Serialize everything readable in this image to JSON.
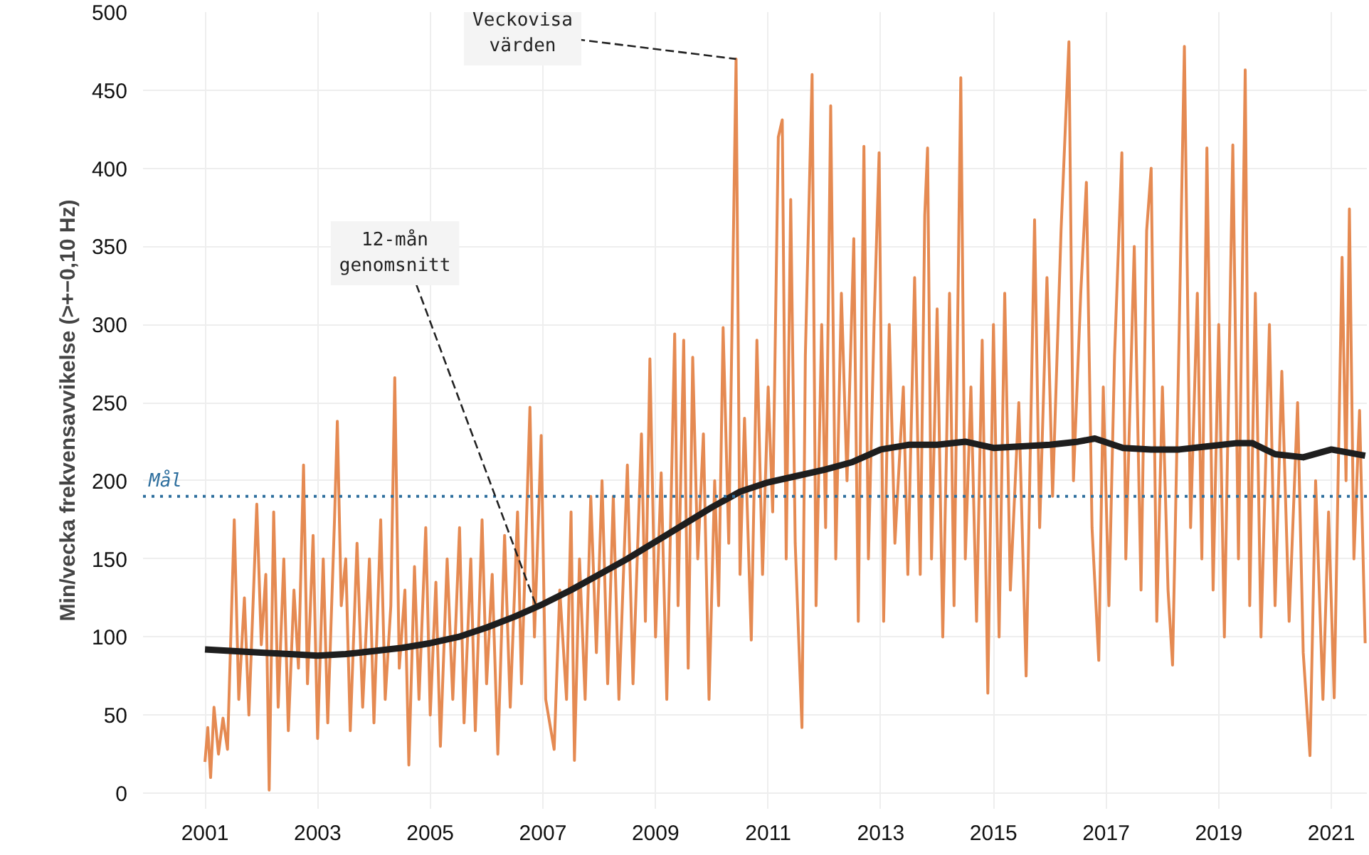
{
  "chart_data": {
    "type": "line",
    "ylabel": "Min/vecka frekvensavvikelse (>+−0,10 Hz)",
    "xlim": [
      1999.9,
      2021.63
    ],
    "ylim": [
      -10,
      500
    ],
    "xticks": [
      2001,
      2003,
      2005,
      2007,
      2009,
      2011,
      2013,
      2015,
      2017,
      2019,
      2021
    ],
    "yticks": [
      0,
      50,
      100,
      150,
      200,
      250,
      300,
      350,
      400,
      450,
      500
    ],
    "grid": true,
    "ref_lines": [
      {
        "axis": "y",
        "value": 190,
        "label": "Mål",
        "color": "#2e6f9e",
        "line_style": "dotted"
      }
    ],
    "annotations": [
      {
        "text": "Veckovisa\nvärden",
        "x": 2010.43,
        "y": 470
      },
      {
        "text": "12-mån\ngenomsnitt",
        "x": 2006.9,
        "y": 118
      }
    ],
    "series": [
      {
        "x": [
          2001.0,
          2001.05,
          2001.1,
          2001.16,
          2001.24,
          2001.32,
          2001.4,
          2001.52,
          2001.6,
          2001.7,
          2001.78,
          2001.92,
          2002.0,
          2002.08,
          2002.14,
          2002.22,
          2002.3,
          2002.4,
          2002.48,
          2002.58,
          2002.66,
          2002.75,
          2002.82,
          2002.92,
          2003.0,
          2003.1,
          2003.18,
          2003.3,
          2003.35,
          2003.42,
          2003.5,
          2003.58,
          2003.7,
          2003.8,
          2003.92,
          2004.0,
          2004.12,
          2004.2,
          2004.3,
          2004.37,
          2004.45,
          2004.55,
          2004.62,
          2004.72,
          2004.8,
          2004.92,
          2005.0,
          2005.1,
          2005.18,
          2005.3,
          2005.4,
          2005.52,
          2005.6,
          2005.72,
          2005.8,
          2005.92,
          2006.0,
          2006.1,
          2006.2,
          2006.32,
          2006.42,
          2006.55,
          2006.62,
          2006.77,
          2006.85,
          2006.97,
          2007.05,
          2007.2,
          2007.3,
          2007.42,
          2007.5,
          2007.56,
          2007.65,
          2007.75,
          2007.85,
          2007.95,
          2008.05,
          2008.15,
          2008.25,
          2008.35,
          2008.5,
          2008.6,
          2008.75,
          2008.82,
          2008.9,
          2009.0,
          2009.1,
          2009.2,
          2009.34,
          2009.4,
          2009.5,
          2009.58,
          2009.66,
          2009.75,
          2009.85,
          2009.95,
          2010.05,
          2010.12,
          2010.2,
          2010.3,
          2010.43,
          2010.5,
          2010.58,
          2010.7,
          2010.8,
          2010.9,
          2011.0,
          2011.08,
          2011.18,
          2011.25,
          2011.32,
          2011.4,
          2011.48,
          2011.6,
          2011.66,
          2011.78,
          2011.85,
          2011.95,
          2012.02,
          2012.11,
          2012.2,
          2012.3,
          2012.4,
          2012.52,
          2012.6,
          2012.7,
          2012.78,
          2012.88,
          2012.97,
          2013.05,
          2013.15,
          2013.25,
          2013.4,
          2013.48,
          2013.6,
          2013.7,
          2013.78,
          2013.83,
          2013.9,
          2014.0,
          2014.1,
          2014.22,
          2014.3,
          2014.42,
          2014.5,
          2014.6,
          2014.7,
          2014.8,
          2014.9,
          2015.0,
          2015.1,
          2015.2,
          2015.3,
          2015.45,
          2015.58,
          2015.73,
          2015.82,
          2015.95,
          2016.05,
          2016.2,
          2016.34,
          2016.42,
          2016.55,
          2016.65,
          2016.75,
          2016.87,
          2016.95,
          2017.05,
          2017.15,
          2017.28,
          2017.35,
          2017.5,
          2017.62,
          2017.72,
          2017.8,
          2017.9,
          2018.0,
          2018.1,
          2018.18,
          2018.3,
          2018.39,
          2018.5,
          2018.62,
          2018.7,
          2018.79,
          2018.9,
          2019.0,
          2019.1,
          2019.25,
          2019.35,
          2019.47,
          2019.55,
          2019.65,
          2019.75,
          2019.9,
          2020.0,
          2020.12,
          2020.25,
          2020.4,
          2020.5,
          2020.62,
          2020.72,
          2020.85,
          2020.95,
          2021.05,
          2021.19,
          2021.26,
          2021.32,
          2021.4,
          2021.5,
          2021.6
        ],
        "values": [
          20,
          42,
          10,
          55,
          25,
          48,
          28,
          175,
          60,
          125,
          50,
          185,
          95,
          140,
          2,
          180,
          55,
          150,
          40,
          130,
          80,
          210,
          70,
          165,
          35,
          150,
          45,
          175,
          238,
          120,
          150,
          40,
          160,
          55,
          150,
          45,
          175,
          60,
          120,
          266,
          80,
          130,
          18,
          145,
          60,
          170,
          50,
          135,
          30,
          150,
          60,
          170,
          45,
          150,
          40,
          175,
          70,
          140,
          25,
          165,
          55,
          180,
          70,
          247,
          100,
          229,
          60,
          28,
          130,
          60,
          180,
          21,
          150,
          60,
          190,
          90,
          200,
          70,
          190,
          60,
          210,
          70,
          230,
          110,
          278,
          100,
          205,
          60,
          294,
          120,
          290,
          80,
          279,
          150,
          230,
          60,
          200,
          120,
          298,
          160,
          470,
          140,
          240,
          98,
          290,
          140,
          260,
          180,
          420,
          431,
          150,
          380,
          160,
          42,
          280,
          460,
          120,
          300,
          170,
          440,
          150,
          320,
          200,
          355,
          110,
          414,
          150,
          300,
          410,
          110,
          300,
          160,
          260,
          140,
          330,
          140,
          370,
          413,
          150,
          310,
          100,
          320,
          120,
          458,
          150,
          260,
          110,
          290,
          64,
          300,
          100,
          320,
          130,
          250,
          75,
          367,
          170,
          330,
          190,
          360,
          481,
          200,
          320,
          391,
          170,
          85,
          260,
          120,
          280,
          410,
          150,
          350,
          130,
          360,
          400,
          110,
          260,
          130,
          82,
          300,
          478,
          170,
          320,
          150,
          413,
          130,
          300,
          100,
          415,
          150,
          463,
          120,
          320,
          100,
          300,
          120,
          270,
          110,
          250,
          90,
          24,
          200,
          60,
          180,
          61,
          343,
          200,
          374,
          150,
          245,
          96
        ],
        "color": "#e58a52"
      },
      {
        "color": "#1e1e1e",
        "x": [
          2001.0,
          2001.5,
          2002.0,
          2002.5,
          2003.0,
          2003.5,
          2004.0,
          2004.5,
          2005.0,
          2005.5,
          2006.0,
          2006.5,
          2007.0,
          2007.5,
          2008.0,
          2008.5,
          2009.0,
          2009.5,
          2010.0,
          2010.5,
          2011.0,
          2011.5,
          2012.0,
          2012.5,
          2013.0,
          2013.5,
          2014.0,
          2014.5,
          2015.0,
          2015.5,
          2016.0,
          2016.5,
          2016.8,
          2017.3,
          2017.8,
          2018.3,
          2018.8,
          2019.3,
          2019.6,
          2020.0,
          2020.5,
          2021.0,
          2021.6
        ],
        "values": [
          92,
          91,
          90,
          89,
          88,
          89,
          91,
          93,
          96,
          100,
          106,
          113,
          121,
          130,
          140,
          150,
          161,
          172,
          183,
          193,
          199,
          203,
          207,
          212,
          220,
          223,
          223,
          225,
          221,
          222,
          223,
          225,
          227,
          221,
          220,
          220,
          222,
          224,
          224,
          217,
          215,
          220,
          216
        ]
      }
    ]
  }
}
